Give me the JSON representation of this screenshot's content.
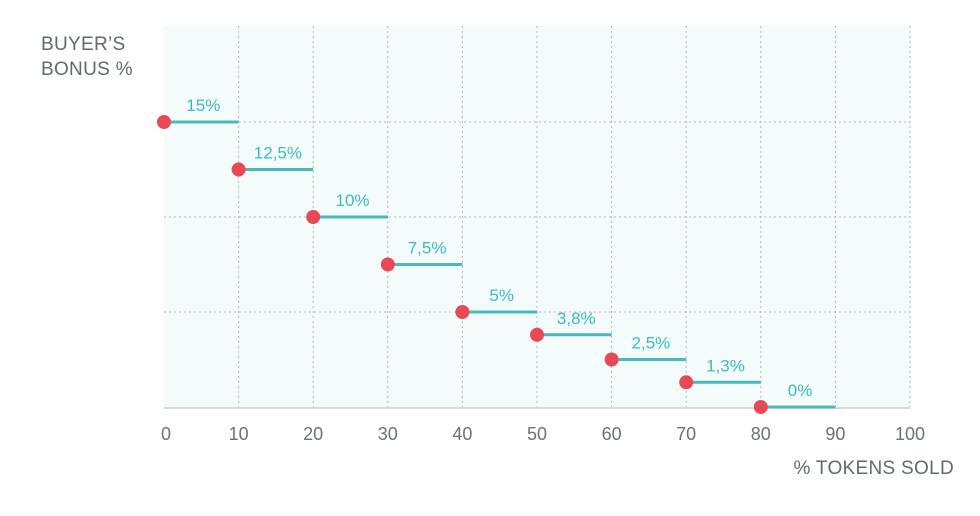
{
  "chart_data": {
    "type": "step",
    "ylabel": "BUYER’S\nBONUS %",
    "xlabel": "% TOKENS SOLD",
    "xlim": [
      0,
      100
    ],
    "xticks": [
      "0",
      "10",
      "20",
      "30",
      "40",
      "50",
      "60",
      "70",
      "80",
      "90",
      "100"
    ],
    "ylim": [
      0,
      15
    ],
    "points": [
      {
        "x": 0,
        "y": 15,
        "label": "15%"
      },
      {
        "x": 10,
        "y": 12.5,
        "label": "12,5%"
      },
      {
        "x": 20,
        "y": 10,
        "label": "10%"
      },
      {
        "x": 30,
        "y": 7.5,
        "label": "7,5%"
      },
      {
        "x": 40,
        "y": 5,
        "label": "5%"
      },
      {
        "x": 50,
        "y": 3.8,
        "label": "3,8%"
      },
      {
        "x": 60,
        "y": 2.5,
        "label": "2,5%"
      },
      {
        "x": 70,
        "y": 1.3,
        "label": "1,3%"
      },
      {
        "x": 80,
        "y": 0,
        "label": "0%"
      }
    ],
    "step_width": 10,
    "grid": true,
    "colors": {
      "point": "#e84a55",
      "step": "#4bb9bc",
      "label": "#3bbcc0",
      "plot_bg": "#f4fbfb",
      "grid": "#aeb8bc"
    }
  }
}
